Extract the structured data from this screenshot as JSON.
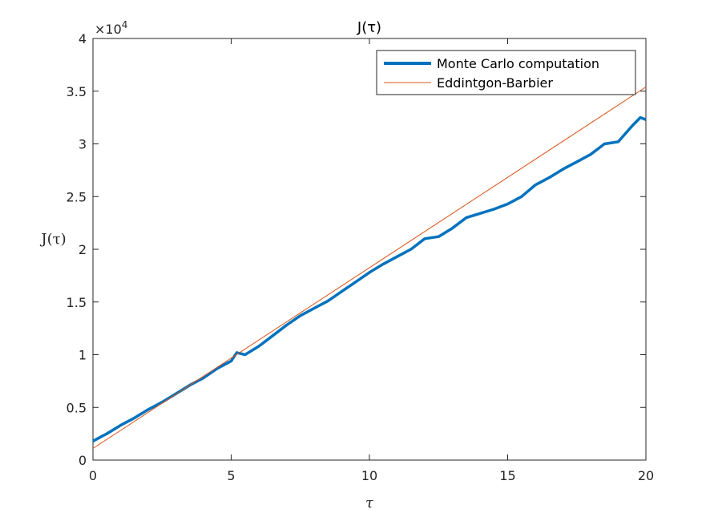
{
  "chart_data": {
    "type": "line",
    "title": "J(τ)",
    "xlabel": "τ",
    "ylabel": "J(τ)",
    "y_exponent_label": "×10",
    "y_exponent_power": "4",
    "xlim": [
      0,
      20
    ],
    "ylim": [
      0,
      40000
    ],
    "xticks": [
      "0",
      "5",
      "10",
      "15",
      "20"
    ],
    "yticks": [
      "0",
      "0.5",
      "1",
      "1.5",
      "2",
      "2.5",
      "3",
      "3.5",
      "4"
    ],
    "grid": false,
    "legend_position": "top-right",
    "series": [
      {
        "name": "Monte Carlo computation",
        "color": "#0072bd",
        "x": [
          0,
          0.5,
          1,
          1.5,
          2,
          2.5,
          3,
          3.5,
          4,
          4.5,
          5,
          5.2,
          5.5,
          6,
          6.5,
          7,
          7.5,
          8,
          8.5,
          9,
          9.5,
          10,
          10.5,
          11,
          11.5,
          12,
          12.5,
          13,
          13.5,
          14,
          14.5,
          15,
          15.5,
          16,
          16.5,
          17,
          17.5,
          18,
          18.5,
          19,
          19.5,
          19.8,
          20
        ],
        "y": [
          1800,
          2500,
          3300,
          4000,
          4800,
          5500,
          6300,
          7100,
          7800,
          8700,
          9400,
          10200,
          10000,
          10800,
          11800,
          12800,
          13700,
          14400,
          15100,
          16000,
          16900,
          17800,
          18600,
          19300,
          20000,
          21000,
          21200,
          22000,
          23000,
          23400,
          23800,
          24300,
          25000,
          26100,
          26800,
          27600,
          28300,
          29000,
          30000,
          30200,
          31700,
          32500,
          32300
        ]
      },
      {
        "name": "Eddintgon-Barbier",
        "color": "#d95319",
        "x": [
          0,
          20
        ],
        "y": [
          1100,
          35400
        ]
      }
    ]
  }
}
